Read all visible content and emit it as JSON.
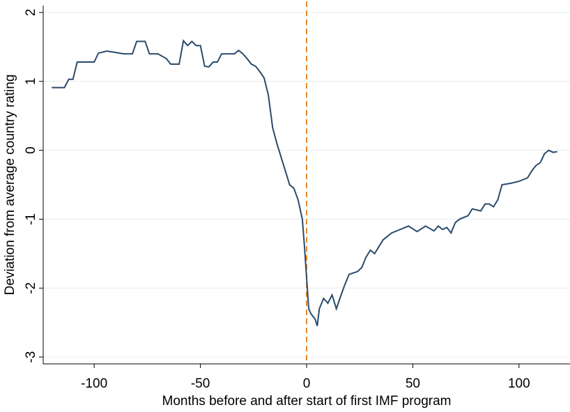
{
  "chart_data": {
    "type": "line",
    "xlabel": "Months before and after start of first IMF program",
    "ylabel": "Deviation from average country rating",
    "x": [
      -120,
      -114,
      -112,
      -110,
      -108,
      -100,
      -98,
      -94,
      -90,
      -86,
      -82,
      -80,
      -76,
      -74,
      -70,
      -66,
      -64,
      -60,
      -58,
      -56,
      -54,
      -52,
      -50,
      -48,
      -46,
      -44,
      -42,
      -40,
      -34,
      -32,
      -30,
      -28,
      -26,
      -24,
      -22,
      -20,
      -18,
      -16,
      -14,
      -12,
      -10,
      -8,
      -6,
      -4,
      -2,
      -1,
      0,
      1,
      2,
      4,
      5,
      6,
      8,
      10,
      12,
      14,
      16,
      18,
      20,
      24,
      26,
      28,
      30,
      32,
      34,
      36,
      40,
      44,
      48,
      52,
      56,
      60,
      62,
      64,
      66,
      68,
      70,
      72,
      76,
      78,
      82,
      84,
      86,
      88,
      90,
      92,
      96,
      100,
      104,
      106,
      108,
      110,
      112,
      114,
      116,
      118
    ],
    "series": [
      {
        "name": "rating",
        "color": "#2a4a6b",
        "values": [
          0.91,
          0.91,
          1.03,
          1.03,
          1.28,
          1.28,
          1.41,
          1.44,
          1.42,
          1.4,
          1.4,
          1.58,
          1.58,
          1.4,
          1.4,
          1.33,
          1.25,
          1.25,
          1.59,
          1.52,
          1.58,
          1.52,
          1.52,
          1.22,
          1.21,
          1.28,
          1.28,
          1.4,
          1.4,
          1.45,
          1.4,
          1.33,
          1.25,
          1.22,
          1.14,
          1.05,
          0.8,
          0.33,
          0.1,
          -0.1,
          -0.3,
          -0.5,
          -0.55,
          -0.72,
          -1.0,
          -1.4,
          -1.85,
          -2.3,
          -2.37,
          -2.45,
          -2.55,
          -2.3,
          -2.15,
          -2.22,
          -2.1,
          -2.3,
          -2.12,
          -1.95,
          -1.8,
          -1.76,
          -1.7,
          -1.55,
          -1.45,
          -1.5,
          -1.4,
          -1.3,
          -1.2,
          -1.15,
          -1.1,
          -1.18,
          -1.1,
          -1.17,
          -1.1,
          -1.15,
          -1.12,
          -1.2,
          -1.05,
          -1.0,
          -0.95,
          -0.85,
          -0.88,
          -0.78,
          -0.78,
          -0.82,
          -0.72,
          -0.5,
          -0.48,
          -0.45,
          -0.4,
          -0.3,
          -0.22,
          -0.18,
          -0.05,
          0.0,
          -0.03,
          -0.02
        ]
      }
    ],
    "vline": 0,
    "vline_color": "#e8892a",
    "xlim": [
      -124,
      124
    ],
    "ylim": [
      -3.1,
      2.1
    ],
    "xticks": [
      -100,
      -50,
      0,
      50,
      100
    ],
    "yticks": [
      -3,
      -2,
      -1,
      0,
      1,
      2
    ],
    "grid": true
  }
}
